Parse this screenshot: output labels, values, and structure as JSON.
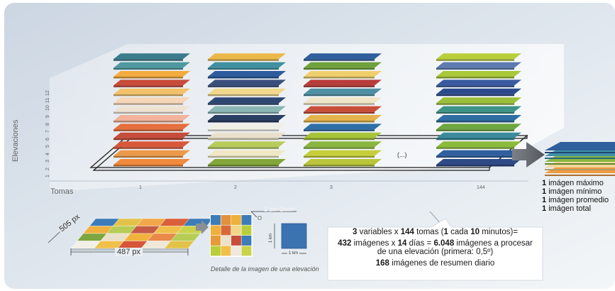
{
  "chart_data": {
    "type": "diagram",
    "ylabel": "Elevaciones",
    "xlabel": "Tomas",
    "y_ticks": [
      "1",
      "2",
      "3",
      "4",
      "5",
      "6",
      "7",
      "8",
      "9",
      "10",
      "11",
      "12"
    ],
    "x_ticks": [
      "1",
      "2",
      "3",
      "144"
    ]
  },
  "ellipsis": "(...)",
  "stack_colors": [
    [
      "#f08a3c",
      "#ec9a4a",
      "#d9583a",
      "#c54e3a",
      "#e66f3e",
      "#f2b39a",
      "#eee3d3",
      "#f6d6b7",
      "#f2c16a",
      "#c94b3a",
      "#f3aa3e",
      "#4f9aa0",
      "#3a7c8c"
    ],
    [
      "#83a63a",
      "#f0e8c4",
      "#b7cc5a",
      "#e9e0cb",
      "#f2efe6",
      "#2b3f63",
      "#8ab6b5",
      "#2d4773",
      "#f0d98c",
      "#3a4f7c",
      "#2d5d9e",
      "#3f90a0",
      "#ecb84a"
    ],
    [
      "#b9c63a",
      "#c6cf3a",
      "#8ab640",
      "#a7c43a",
      "#2f6fa7",
      "#e4b34a",
      "#c94e3a",
      "#efe6c9",
      "#4d8fa3",
      "#b93d39",
      "#efcf6c",
      "#6fa23e",
      "#2f5f9c"
    ],
    [
      "#2e4a86",
      "#2f5f9f",
      "#8bbb3a",
      "#3b8b9c",
      "#6ea640",
      "#2f6ea3",
      "#3d9486",
      "#9bbf3a",
      "#2b4a8c",
      "#3a5aa0",
      "#a9c83a",
      "#5e7bb0",
      "#b9cf3a"
    ]
  ],
  "result_colors": [
    "#f09a3c",
    "#f2d79a",
    "#8ab640",
    "#3f90a6",
    "#2f5f9c"
  ],
  "result_list": [
    {
      "num": "1",
      "text": "imágen máximo"
    },
    {
      "num": "1",
      "text": "imágen mínimo"
    },
    {
      "num": "1",
      "text": "imágen promedio"
    },
    {
      "num": "1",
      "text": "imágen total"
    }
  ],
  "summary": {
    "variables": "3",
    "t1": "variables x",
    "tomas": "144",
    "t2": "tomas (",
    "one": "1",
    "t3": "cada",
    "ten": "10",
    "t4": "minutos)=",
    "images": "432",
    "t5": "imágenes x",
    "days": "14",
    "t6": "días =",
    "total": "6.048",
    "t7": "imágenes a procesar",
    "t8": "de una elevación (primera: 0,5º)",
    "daily": "168",
    "t9": "imágenes de resumen diario"
  },
  "dimensions": {
    "width": "487 px",
    "depth": "505 px",
    "pixel_scale": "1 px=1km²",
    "km": "1 km"
  },
  "pixel_grid_colors": [
    [
      "#3c7cb8",
      "#e3c24a",
      "#f2a84a",
      "#d9603a",
      "#3c7cb8"
    ],
    [
      "#f0b03c",
      "#b6cc56",
      "#c55b46",
      "#f0bf4a",
      "#c9d34a"
    ],
    [
      "#7ea640",
      "#eae0c9",
      "#f2b33c",
      "#e9894a",
      "#b6cc56"
    ],
    [
      "#f2f0e8",
      "#f0c04a",
      "#d8553a",
      "#efe8d8",
      "#e3c24a"
    ]
  ],
  "detail_grid_colors": [
    [
      "#3c7cb8",
      "#e0913a",
      "#f0b03c",
      "#3c7cb8"
    ],
    [
      "#f0b03c",
      "#d86a3a",
      "#f2d78a",
      "#b9cf3a"
    ],
    [
      "#e69a3a",
      "#eae2c9",
      "#c84e3a",
      "#3c7cb8"
    ],
    [
      "#b9cf3a",
      "#f0bf4a",
      "#efe9e0",
      "#c9d34a"
    ]
  ],
  "caption": "Detalle de la imagen de una elevación"
}
